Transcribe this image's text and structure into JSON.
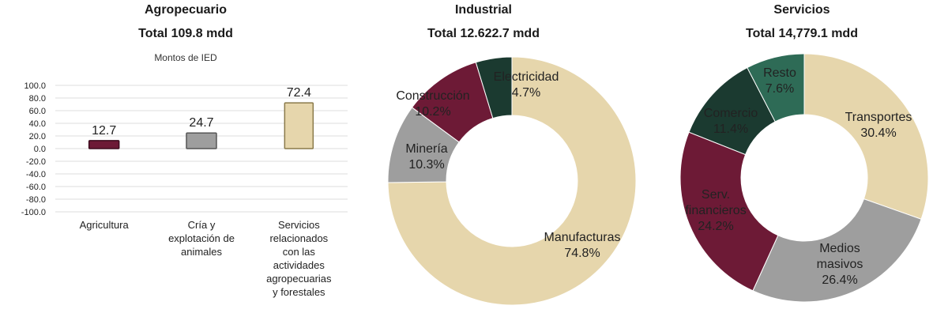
{
  "colors": {
    "wine": "#6d1a36",
    "gray": "#9e9e9e",
    "beige": "#e6d6ac",
    "dark_green": "#1b3a30",
    "teal": "#2e6b56",
    "grid": "#dddddd"
  },
  "chart_data": [
    {
      "type": "bar",
      "title": "Agropecuario",
      "subtitle": "Total 109.8 mdd",
      "legend": "Montos de IED",
      "categories": [
        "Agricultura",
        "Cría y explotación de animales",
        "Servicios relacionados con las actividades agropecuarias y forestales"
      ],
      "category_lines": [
        [
          "Agricultura"
        ],
        [
          "Cría y",
          "explotación de",
          "animales"
        ],
        [
          "Servicios",
          "relacionados",
          "con las",
          "actividades",
          "agropecuarias",
          "y forestales"
        ]
      ],
      "values": [
        12.7,
        24.7,
        72.4
      ],
      "value_labels": [
        "12.7",
        "24.7",
        "72.4"
      ],
      "ylim": [
        -100,
        100
      ],
      "y_ticks": [
        "100.0",
        "80.0",
        "60.0",
        "40.0",
        "20.0",
        "0.0",
        "-20.0",
        "-40.0",
        "-60.0",
        "-80.0",
        "-100.0"
      ],
      "grid": true
    },
    {
      "type": "pie",
      "title": "Industrial",
      "subtitle": "Total 12.622.7 mdd",
      "slices": [
        {
          "label": "Manufacturas",
          "value": 74.8,
          "pct_label": "74.8%"
        },
        {
          "label": "Minería",
          "value": 10.3,
          "pct_label": "10.3%"
        },
        {
          "label": "Construcción",
          "value": 10.2,
          "pct_label": "10.2%"
        },
        {
          "label": "Electricidad",
          "value": 4.7,
          "pct_label": "4.7%"
        }
      ]
    },
    {
      "type": "pie",
      "title": "Servicios",
      "subtitle": "Total 14,779.1 mdd",
      "slices": [
        {
          "label": "Transportes",
          "value": 30.4,
          "pct_label": "30.4%"
        },
        {
          "label": "Medios masivos",
          "value": 26.4,
          "pct_label": "26.4%"
        },
        {
          "label": "Serv. financieros",
          "value": 24.2,
          "pct_label": "24.2%"
        },
        {
          "label": "Comercio",
          "value": 11.4,
          "pct_label": "11.4%"
        },
        {
          "label": "Resto",
          "value": 7.6,
          "pct_label": "7.6%"
        }
      ]
    }
  ]
}
